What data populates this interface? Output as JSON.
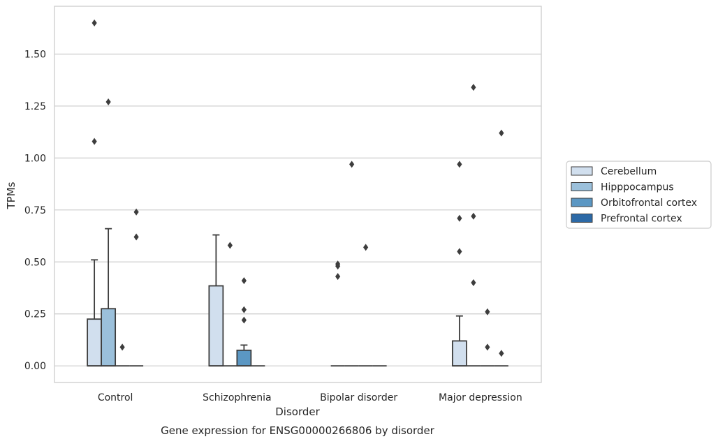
{
  "chart_data": {
    "type": "boxplot",
    "caption": "Gene expression for ENSG00000266806 by disorder",
    "xlabel": "Disorder",
    "ylabel": "TPMs",
    "ylim": [
      -0.08,
      1.73
    ],
    "yticks": [
      "0.00",
      "0.25",
      "0.50",
      "0.75",
      "1.00",
      "1.25",
      "1.50"
    ],
    "grid": "horizontal",
    "legend_position": "right",
    "categories": [
      "Control",
      "Schizophrenia",
      "Bipolar disorder",
      "Major depression"
    ],
    "series": [
      {
        "name": "Cerebellum",
        "color": "#d1dfee",
        "boxes": [
          {
            "q1": 0,
            "median": 0,
            "q3": 0.225,
            "whisker_low": 0,
            "whisker_high": 0.51,
            "outliers": [
              1.08,
              1.65
            ]
          },
          {
            "q1": 0,
            "median": 0,
            "q3": 0.385,
            "whisker_low": 0,
            "whisker_high": 0.63,
            "outliers": []
          },
          {
            "q1": 0,
            "median": 0,
            "q3": 0,
            "whisker_low": 0,
            "whisker_high": 0,
            "outliers": [
              0.43,
              0.48,
              0.49
            ]
          },
          {
            "q1": 0,
            "median": 0,
            "q3": 0.12,
            "whisker_low": 0,
            "whisker_high": 0.24,
            "outliers": [
              0.55,
              0.71,
              0.97
            ]
          }
        ]
      },
      {
        "name": "Hipppocampus",
        "color": "#9bc0db",
        "boxes": [
          {
            "q1": 0,
            "median": 0,
            "q3": 0.275,
            "whisker_low": 0,
            "whisker_high": 0.66,
            "outliers": [
              1.27
            ]
          },
          {
            "q1": 0,
            "median": 0,
            "q3": 0,
            "whisker_low": 0,
            "whisker_high": 0,
            "outliers": [
              0.58
            ]
          },
          {
            "q1": 0,
            "median": 0,
            "q3": 0,
            "whisker_low": 0,
            "whisker_high": 0,
            "outliers": [
              0.97
            ]
          },
          {
            "q1": 0,
            "median": 0,
            "q3": 0,
            "whisker_low": 0,
            "whisker_high": 0,
            "outliers": [
              0.4,
              0.72,
              1.34
            ]
          }
        ]
      },
      {
        "name": "Orbitofrontal cortex",
        "color": "#5b97c3",
        "boxes": [
          {
            "q1": 0,
            "median": 0,
            "q3": 0,
            "whisker_low": 0,
            "whisker_high": 0,
            "outliers": [
              0.09
            ]
          },
          {
            "q1": 0,
            "median": 0,
            "q3": 0.075,
            "whisker_low": 0,
            "whisker_high": 0.1,
            "outliers": [
              0.22,
              0.27,
              0.41
            ]
          },
          {
            "q1": 0,
            "median": 0,
            "q3": 0,
            "whisker_low": 0,
            "whisker_high": 0,
            "outliers": [
              0.57
            ]
          },
          {
            "q1": 0,
            "median": 0,
            "q3": 0,
            "whisker_low": 0,
            "whisker_high": 0,
            "outliers": [
              0.09,
              0.26
            ]
          }
        ]
      },
      {
        "name": "Prefrontal cortex",
        "color": "#2c69a6",
        "boxes": [
          {
            "q1": 0,
            "median": 0,
            "q3": 0,
            "whisker_low": 0,
            "whisker_high": 0,
            "outliers": [
              0.62,
              0.74
            ]
          },
          {
            "q1": 0,
            "median": 0,
            "q3": 0,
            "whisker_low": 0,
            "whisker_high": 0,
            "outliers": []
          },
          {
            "q1": 0,
            "median": 0,
            "q3": 0,
            "whisker_low": 0,
            "whisker_high": 0,
            "outliers": []
          },
          {
            "q1": 0,
            "median": 0,
            "q3": 0,
            "whisker_low": 0,
            "whisker_high": 0,
            "outliers": [
              0.06,
              1.12
            ]
          }
        ]
      }
    ]
  }
}
